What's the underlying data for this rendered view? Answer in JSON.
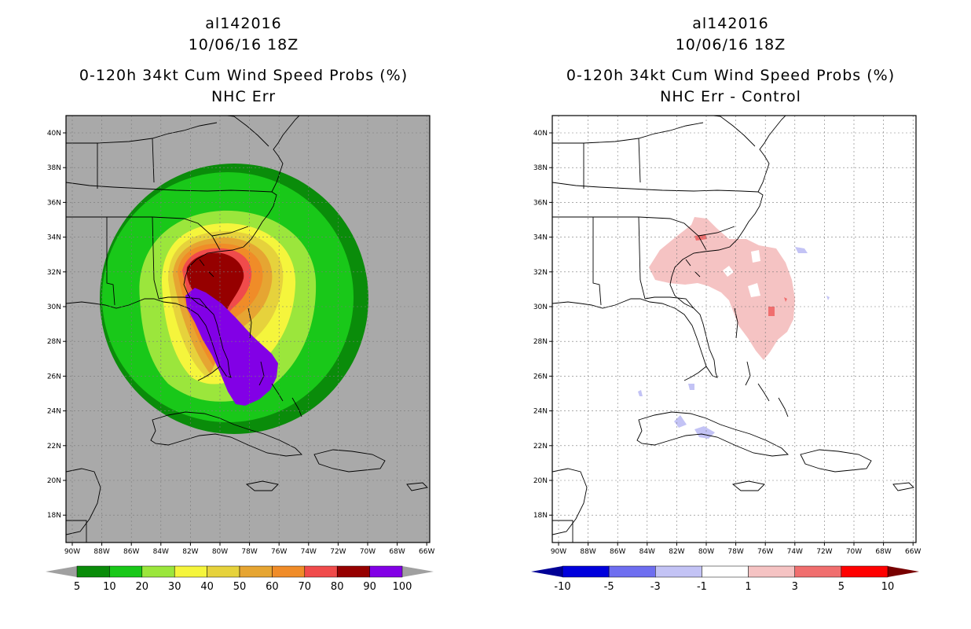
{
  "left_panel": {
    "storm_id": "al142016",
    "datetime": "10/06/16 18Z",
    "product": "0-120h 34kt Cum Wind Speed Probs (%)",
    "subtitle": "NHC Err",
    "background_color": "#a9a9a9",
    "colorbar": {
      "labels": [
        "5",
        "10",
        "20",
        "30",
        "40",
        "50",
        "60",
        "70",
        "80",
        "90",
        "100"
      ],
      "colors": [
        "#0a8c0a",
        "#19c819",
        "#9be63c",
        "#f5f53c",
        "#e6d23c",
        "#e6a532",
        "#f08c28",
        "#f04b4b",
        "#960000",
        "#8200e6"
      ]
    }
  },
  "right_panel": {
    "storm_id": "al142016",
    "datetime": "10/06/16 18Z",
    "product": "0-120h 34kt Cum Wind Speed Probs (%)",
    "subtitle": "NHC Err - Control",
    "background_color": "#ffffff",
    "colorbar": {
      "labels": [
        "-10",
        "-5",
        "-3",
        "-1",
        "1",
        "3",
        "5",
        "10"
      ],
      "colors": [
        "#0000dc",
        "#6e6ef0",
        "#c3c3f5",
        "#ffffff",
        "#f5c3c3",
        "#f06e6e",
        "#ff0000"
      ],
      "low_arrow_color": "#000096",
      "high_arrow_color": "#780000"
    }
  },
  "map_axes": {
    "lat_labels": [
      "40N",
      "38N",
      "36N",
      "34N",
      "32N",
      "30N",
      "28N",
      "26N",
      "24N",
      "22N",
      "20N",
      "18N"
    ],
    "lon_labels": [
      "90W",
      "88W",
      "86W",
      "84W",
      "82W",
      "80W",
      "78W",
      "76W",
      "74W",
      "72W",
      "70W",
      "68W",
      "66W"
    ]
  }
}
